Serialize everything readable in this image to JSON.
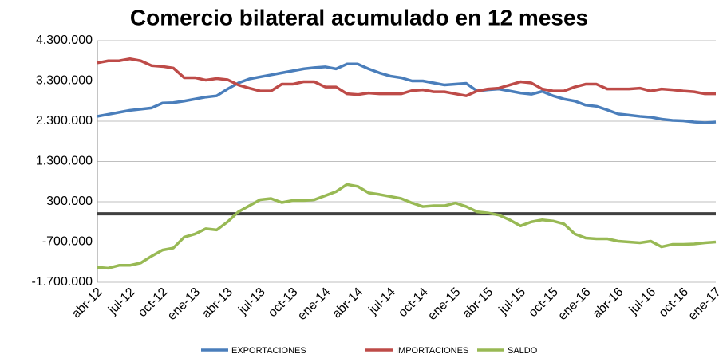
{
  "chart_data": {
    "type": "line",
    "title": "Comercio bilateral acumulado en 12 meses",
    "categories": [
      "abr-12",
      null,
      null,
      "jul-12",
      null,
      null,
      "oct-12",
      null,
      null,
      "ene-13",
      null,
      null,
      "abr-13",
      null,
      null,
      "jul-13",
      null,
      null,
      "oct-13",
      null,
      null,
      "ene-14",
      null,
      null,
      "abr-14",
      null,
      null,
      "jul-14",
      null,
      null,
      "oct-14",
      null,
      null,
      "ene-15",
      null,
      null,
      "abr-15",
      null,
      null,
      "jul-15",
      null,
      null,
      "oct-15",
      null,
      null,
      "ene-16",
      null,
      null,
      "abr-16",
      null,
      null,
      "jul-16",
      null,
      null,
      "oct-16",
      null,
      null,
      "ene-17"
    ],
    "series": [
      {
        "name": "EXPORTACIONES",
        "color": "#4a7ebb",
        "values": [
          2420000,
          2470000,
          2520000,
          2570000,
          2600000,
          2630000,
          2750000,
          2760000,
          2800000,
          2850000,
          2900000,
          2930000,
          3100000,
          3250000,
          3350000,
          3400000,
          3450000,
          3500000,
          3550000,
          3600000,
          3630000,
          3650000,
          3600000,
          3720000,
          3720000,
          3600000,
          3500000,
          3420000,
          3380000,
          3300000,
          3300000,
          3250000,
          3200000,
          3220000,
          3240000,
          3050000,
          3080000,
          3100000,
          3050000,
          3000000,
          2970000,
          3040000,
          2930000,
          2850000,
          2800000,
          2700000,
          2670000,
          2580000,
          2480000,
          2450000,
          2420000,
          2400000,
          2350000,
          2320000,
          2310000,
          2280000,
          2260000,
          2280000
        ]
      },
      {
        "name": "IMPORTACIONES",
        "color": "#be4b48",
        "values": [
          3750000,
          3800000,
          3800000,
          3850000,
          3800000,
          3680000,
          3660000,
          3620000,
          3380000,
          3380000,
          3320000,
          3360000,
          3330000,
          3200000,
          3120000,
          3050000,
          3050000,
          3220000,
          3220000,
          3280000,
          3280000,
          3150000,
          3150000,
          2980000,
          2960000,
          3000000,
          2980000,
          2980000,
          2980000,
          3060000,
          3080000,
          3030000,
          3030000,
          2980000,
          2930000,
          3050000,
          3100000,
          3120000,
          3200000,
          3280000,
          3250000,
          3100000,
          3050000,
          3050000,
          3150000,
          3220000,
          3220000,
          3100000,
          3100000,
          3100000,
          3120000,
          3050000,
          3100000,
          3080000,
          3050000,
          3030000,
          2980000,
          2980000
        ]
      },
      {
        "name": "SALDO",
        "color": "#98b954",
        "values": [
          -1330000,
          -1350000,
          -1280000,
          -1280000,
          -1220000,
          -1050000,
          -900000,
          -850000,
          -580000,
          -500000,
          -370000,
          -400000,
          -200000,
          50000,
          200000,
          350000,
          380000,
          280000,
          330000,
          330000,
          350000,
          450000,
          550000,
          730000,
          680000,
          520000,
          480000,
          430000,
          380000,
          270000,
          180000,
          200000,
          200000,
          270000,
          180000,
          50000,
          20000,
          -30000,
          -150000,
          -300000,
          -200000,
          -150000,
          -180000,
          -250000,
          -500000,
          -600000,
          -620000,
          -620000,
          -680000,
          -700000,
          -720000,
          -680000,
          -820000,
          -760000,
          -760000,
          -750000,
          -720000,
          -700000
        ]
      }
    ],
    "ylim": [
      -1700000,
      4300000
    ],
    "yticks": [
      {
        "value": -1700000,
        "label": "-1.700.000"
      },
      {
        "value": -700000,
        "label": "-700.000"
      },
      {
        "value": 300000,
        "label": "300.000"
      },
      {
        "value": 1300000,
        "label": "1.300.000"
      },
      {
        "value": 2300000,
        "label": "2.300.000"
      },
      {
        "value": 3300000,
        "label": "3.300.000"
      },
      {
        "value": 4300000,
        "label": "4.300.000"
      }
    ],
    "grid": true,
    "legend": "bottom"
  }
}
